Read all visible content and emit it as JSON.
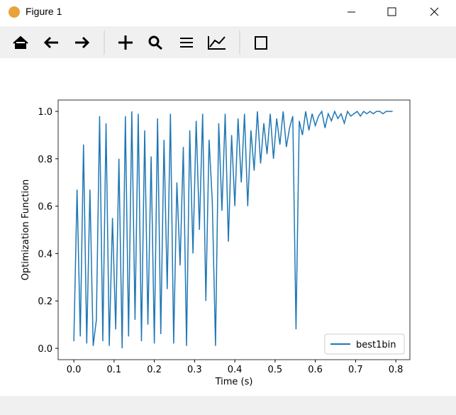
{
  "window": {
    "title": "Figure 1"
  },
  "chart_data": {
    "type": "line",
    "xlabel": "Time (s)",
    "ylabel": "Optimization Function",
    "x": [
      0,
      0.008,
      0.016,
      0.024,
      0.032,
      0.04,
      0.048,
      0.056,
      0.064,
      0.072,
      0.08,
      0.088,
      0.096,
      0.104,
      0.112,
      0.12,
      0.128,
      0.136,
      0.144,
      0.152,
      0.16,
      0.168,
      0.176,
      0.184,
      0.192,
      0.2,
      0.208,
      0.216,
      0.224,
      0.232,
      0.24,
      0.248,
      0.256,
      0.264,
      0.272,
      0.28,
      0.288,
      0.296,
      0.304,
      0.312,
      0.32,
      0.328,
      0.336,
      0.344,
      0.352,
      0.36,
      0.368,
      0.376,
      0.384,
      0.392,
      0.4,
      0.408,
      0.416,
      0.424,
      0.432,
      0.44,
      0.448,
      0.456,
      0.464,
      0.472,
      0.48,
      0.488,
      0.496,
      0.504,
      0.512,
      0.52,
      0.528,
      0.536,
      0.544,
      0.552,
      0.56,
      0.568,
      0.576,
      0.584,
      0.592,
      0.6,
      0.608,
      0.616,
      0.624,
      0.632,
      0.64,
      0.648,
      0.656,
      0.664,
      0.672,
      0.68,
      0.688,
      0.696,
      0.704,
      0.712,
      0.72,
      0.728,
      0.736,
      0.744,
      0.752,
      0.76,
      0.768,
      0.776,
      0.784,
      0.792
    ],
    "series": [
      {
        "name": "best1bin",
        "color": "#1f77b4",
        "values": [
          0.03,
          0.67,
          0.05,
          0.86,
          0.02,
          0.67,
          0.01,
          0.12,
          0.98,
          0.03,
          0.95,
          0.01,
          0.55,
          0.08,
          0.8,
          0.0,
          0.98,
          0.05,
          1.0,
          0.12,
          0.99,
          0.03,
          0.92,
          0.1,
          0.81,
          0.02,
          0.97,
          0.06,
          0.88,
          0.25,
          0.99,
          0.02,
          0.7,
          0.35,
          0.85,
          0.01,
          0.92,
          0.4,
          0.96,
          0.5,
          0.99,
          0.2,
          0.88,
          0.62,
          0.01,
          0.95,
          0.58,
          0.99,
          0.45,
          0.9,
          0.6,
          0.97,
          0.7,
          0.99,
          0.6,
          0.92,
          0.75,
          1.0,
          0.78,
          0.95,
          0.82,
          0.99,
          0.8,
          0.97,
          0.86,
          1.0,
          0.85,
          0.93,
          0.98,
          0.08,
          0.96,
          0.9,
          1.0,
          0.92,
          0.99,
          0.94,
          0.98,
          1.0,
          0.93,
          0.99,
          0.96,
          1.0,
          0.97,
          0.99,
          0.95,
          1.0,
          0.98,
          0.99,
          1.0,
          0.98,
          1.0,
          0.99,
          1.0,
          0.99,
          1.0,
          1.0,
          0.99,
          1.0,
          1.0,
          1.0
        ]
      }
    ],
    "xlim": [
      -0.039,
      0.835
    ],
    "ylim": [
      -0.048,
      1.048
    ],
    "xticks": [
      {
        "value": 0,
        "label": "0.0"
      },
      0.1,
      0.2,
      0.3,
      0.4,
      0.5,
      0.6,
      0.7,
      0.8
    ],
    "yticks": [
      {
        "value": 0,
        "label": "0.0"
      },
      0.2,
      0.4,
      0.6,
      0.8,
      {
        "value": 1,
        "label": "1.0"
      }
    ],
    "legend": "lower right"
  }
}
